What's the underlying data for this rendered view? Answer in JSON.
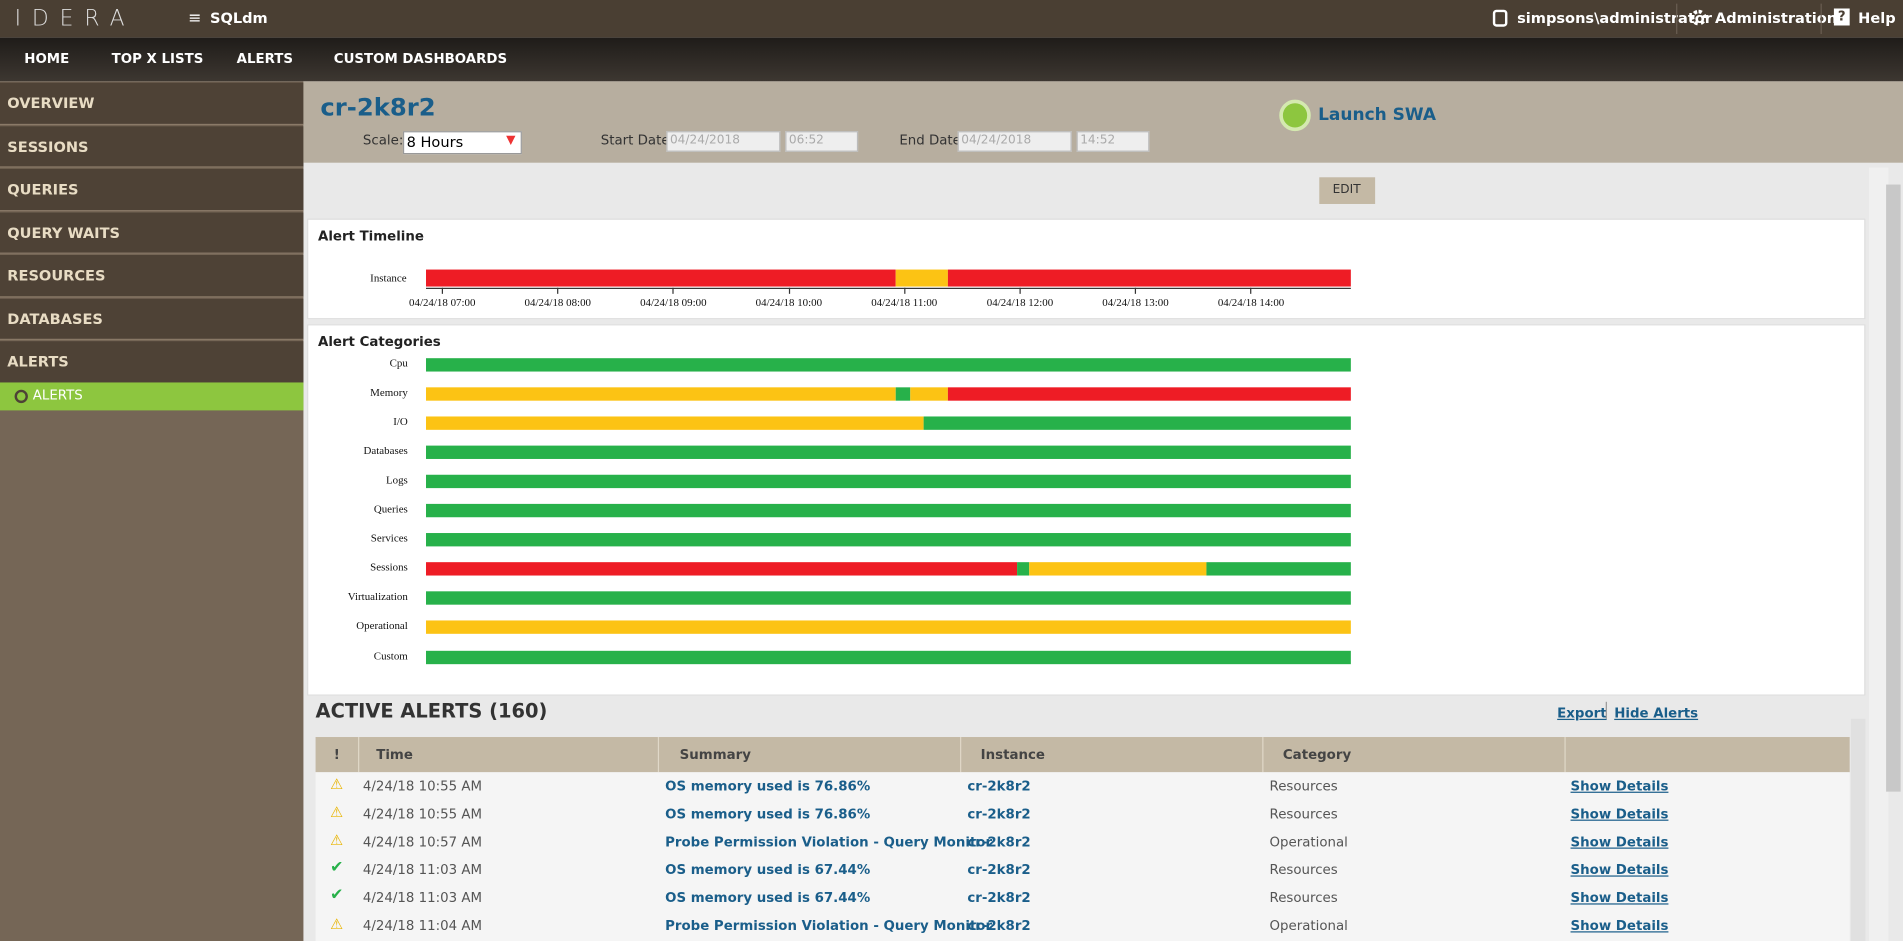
{
  "header": {
    "brand": "IDERA",
    "product": "SQLdm",
    "user": "simpsons\\administrator",
    "admin": "Administration",
    "help": "Help"
  },
  "nav": [
    "HOME",
    "TOP X LISTS",
    "ALERTS",
    "CUSTOM DASHBOARDS"
  ],
  "sidebar": {
    "items": [
      "OVERVIEW",
      "SESSIONS",
      "QUERIES",
      "QUERY WAITS",
      "RESOURCES",
      "DATABASES",
      "ALERTS"
    ],
    "sub": "ALERTS"
  },
  "page": {
    "title": "cr-2k8r2",
    "launch": "Launch SWA",
    "scale_label": "Scale:",
    "scale": "8 Hours",
    "start_label": "Start Date:",
    "start_date": "04/24/2018",
    "start_time": "06:52",
    "end_label": "End Date:",
    "end_date": "04/24/2018",
    "end_time": "14:52",
    "edit": "EDIT"
  },
  "timeline": {
    "title": "Alert Timeline",
    "row": "Instance",
    "times": [
      "04/24/18 07:00",
      "04/24/18 08:00",
      "04/24/18 09:00",
      "04/24/18 10:00",
      "04/24/18 11:00",
      "04/24/18 12:00",
      "04/24/18 13:00",
      "04/24/18 14:00"
    ]
  },
  "categories": {
    "title": "Alert Categories",
    "rows": [
      "Cpu",
      "Memory",
      "I/O",
      "Databases",
      "Logs",
      "Queries",
      "Services",
      "Sessions",
      "Virtualization",
      "Operational",
      "Custom"
    ]
  },
  "alerts": {
    "title": "ACTIVE ALERTS (160)",
    "export": "Export",
    "hide": "Hide Alerts",
    "columns": [
      "!",
      "Time",
      "Summary",
      "Instance",
      "Category"
    ],
    "rows": [
      [
        "4/24/18 10:55 AM",
        "OS memory used is 76.86%",
        "cr-2k8r2",
        "Resources",
        "Show Details"
      ],
      [
        "4/24/18 10:55 AM",
        "OS memory used is 76.86%",
        "cr-2k8r2",
        "Resources",
        "Show Details"
      ],
      [
        "4/24/18 10:57 AM",
        "Probe Permission Violation - Query Monitor",
        "cr-2k8r2",
        "Operational",
        "Show Details"
      ],
      [
        "4/24/18 11:03 AM",
        "OS memory used is 67.44%",
        "cr-2k8r2",
        "Resources",
        "Show Details"
      ],
      [
        "4/24/18 11:03 AM",
        "OS memory used is 67.44%",
        "cr-2k8r2",
        "Resources",
        "Show Details"
      ],
      [
        "4/24/18 11:04 AM",
        "Probe Permission Violation - Query Monitor",
        "cr-2k8r2",
        "Operational",
        "Show Details"
      ]
    ]
  }
}
